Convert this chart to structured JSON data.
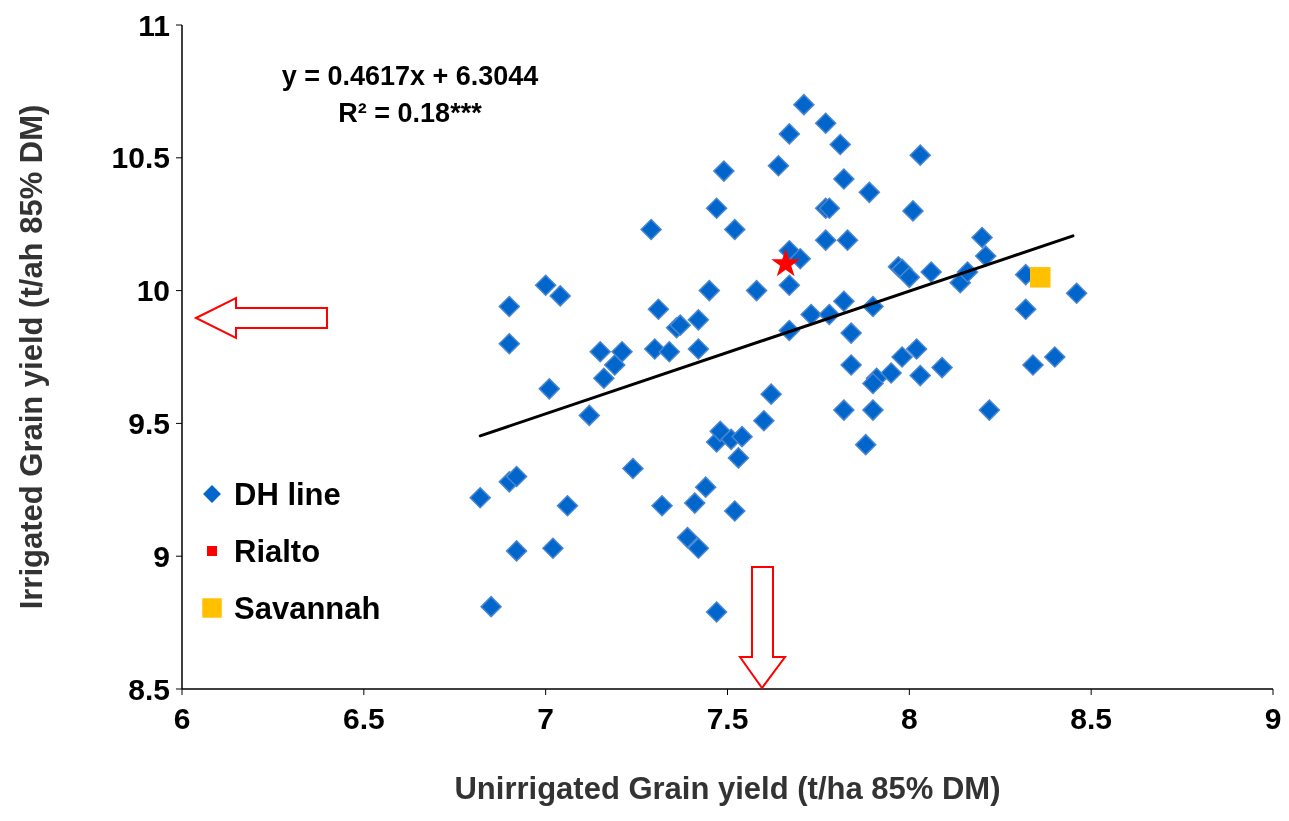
{
  "chart_data": {
    "type": "scatter",
    "xlabel": "Unirrigated Grain yield (t/ha 85% DM)",
    "ylabel": "Irrigated Grain yield (t/ah 85% DM)",
    "xlim": [
      6,
      9
    ],
    "xticks": [
      6,
      6.5,
      7,
      7.5,
      8,
      8.5,
      9
    ],
    "ylim": [
      8.5,
      11
    ],
    "yticks": [
      8.5,
      9,
      9.5,
      10,
      10.5,
      11
    ],
    "grid": false,
    "legend": "bottom left",
    "annotations": [
      "y = 0.4617x + 6.3044",
      "R² = 0.18***"
    ],
    "series": [
      {
        "name": "DH line",
        "color": "#0066cc",
        "marker": "diamond",
        "x": [
          6.82,
          6.85,
          6.9,
          6.92,
          6.9,
          6.9,
          6.92,
          7,
          7.04,
          7.01,
          7.02,
          7.06,
          7.12,
          7.15,
          7.16,
          7.19,
          7.21,
          7.24,
          7.29,
          7.3,
          7.31,
          7.32,
          7.34,
          7.36,
          7.37,
          7.39,
          7.42,
          7.41,
          7.42,
          7.42,
          7.44,
          7.45,
          7.47,
          7.47,
          7.47,
          7.48,
          7.49,
          7.51,
          7.52,
          7.52,
          7.54,
          7.53,
          7.58,
          7.6,
          7.62,
          7.64,
          7.67,
          7.67,
          7.67,
          7.67,
          7.7,
          7.71,
          7.73,
          7.77,
          7.77,
          7.78,
          7.77,
          7.78,
          7.81,
          7.82,
          7.82,
          7.83,
          7.82,
          7.84,
          7.84,
          7.88,
          7.89,
          7.9,
          7.9,
          7.91,
          7.9,
          7.95,
          7.97,
          7.98,
          7.98,
          8,
          8.01,
          8.02,
          8.03,
          8.03,
          8.06,
          8.09,
          8.14,
          8.16,
          8.2,
          8.21,
          8.22,
          8.32,
          8.32,
          8.34,
          8.4,
          8.46
        ],
        "values": [
          9.22,
          8.81,
          9.28,
          9.3,
          9.94,
          9.8,
          9.02,
          10.02,
          9.98,
          9.63,
          9.03,
          9.19,
          9.53,
          9.77,
          9.67,
          9.72,
          9.77,
          9.33,
          10.23,
          9.78,
          9.93,
          9.19,
          9.77,
          9.86,
          9.87,
          9.07,
          9.03,
          9.2,
          9.89,
          9.78,
          9.26,
          10,
          10.31,
          8.79,
          9.43,
          9.47,
          10.45,
          9.44,
          10.23,
          9.17,
          9.45,
          9.37,
          10,
          9.51,
          9.61,
          10.47,
          10.59,
          10.15,
          10.02,
          9.85,
          10.12,
          10.7,
          9.91,
          10.63,
          10.31,
          10.31,
          10.19,
          9.91,
          10.55,
          10.42,
          9.96,
          10.19,
          9.55,
          9.84,
          9.72,
          9.42,
          10.37,
          9.94,
          9.55,
          9.67,
          9.65,
          9.69,
          10.09,
          10.08,
          9.75,
          10.05,
          10.3,
          9.78,
          9.68,
          10.51,
          10.07,
          9.71,
          10.03,
          10.07,
          10.2,
          10.13,
          9.55,
          10.06,
          9.93,
          9.72,
          9.75,
          9.99
        ]
      },
      {
        "name": "Rialto",
        "color": "#ff0000",
        "marker": "star",
        "x": [
          7.66
        ],
        "values": [
          10.1
        ]
      },
      {
        "name": "Savannah",
        "color": "#ffc000",
        "marker": "square",
        "x": [
          8.36
        ],
        "values": [
          10.05
        ]
      },
      {
        "type": "line",
        "color": "#000000",
        "x": [
          6.82,
          8.45
        ],
        "values": [
          9.453,
          10.206
        ]
      }
    ]
  }
}
